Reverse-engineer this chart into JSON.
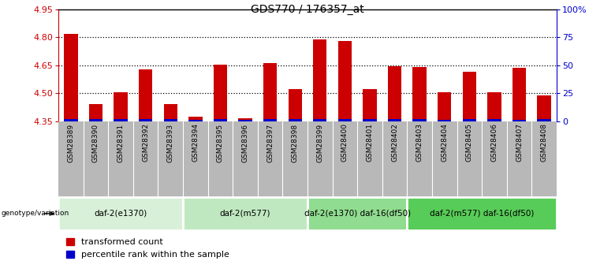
{
  "title": "GDS770 / 176357_at",
  "samples": [
    "GSM28389",
    "GSM28390",
    "GSM28391",
    "GSM28392",
    "GSM28393",
    "GSM28394",
    "GSM28395",
    "GSM28396",
    "GSM28397",
    "GSM28398",
    "GSM28399",
    "GSM28400",
    "GSM28401",
    "GSM28402",
    "GSM28403",
    "GSM28404",
    "GSM28405",
    "GSM28406",
    "GSM28407",
    "GSM28408"
  ],
  "red_values": [
    4.82,
    4.44,
    4.505,
    4.63,
    4.44,
    4.375,
    4.655,
    4.365,
    4.66,
    4.52,
    4.79,
    4.78,
    4.52,
    4.645,
    4.64,
    4.505,
    4.615,
    4.505,
    4.635,
    4.49
  ],
  "blue_heights": [
    0.012,
    0.01,
    0.01,
    0.01,
    0.01,
    0.008,
    0.01,
    0.008,
    0.01,
    0.01,
    0.01,
    0.01,
    0.01,
    0.01,
    0.01,
    0.008,
    0.01,
    0.01,
    0.008,
    0.01
  ],
  "base_value": 4.35,
  "ylim_left": [
    4.35,
    4.95
  ],
  "yticks_left": [
    4.35,
    4.5,
    4.65,
    4.8,
    4.95
  ],
  "ylim_right": [
    0,
    100
  ],
  "yticks_right": [
    0,
    25,
    50,
    75,
    100
  ],
  "ytick_labels_right": [
    "0",
    "25",
    "50",
    "75",
    "100%"
  ],
  "grid_values": [
    4.5,
    4.65,
    4.8
  ],
  "groups": [
    {
      "label": "daf-2(e1370)",
      "start": 0,
      "end": 5,
      "color": "#d8f0d8"
    },
    {
      "label": "daf-2(m577)",
      "start": 5,
      "end": 10,
      "color": "#c0e8c0"
    },
    {
      "label": "daf-2(e1370) daf-16(df50)",
      "start": 10,
      "end": 14,
      "color": "#90dc90"
    },
    {
      "label": "daf-2(m577) daf-16(df50)",
      "start": 14,
      "end": 20,
      "color": "#58cc58"
    }
  ],
  "bar_width": 0.55,
  "red_color": "#cc0000",
  "blue_color": "#0000cc",
  "bg_color": "#ffffff",
  "title_color": "#000000",
  "left_axis_color": "#cc0000",
  "right_axis_color": "#0000cc",
  "legend_red": "transformed count",
  "legend_blue": "percentile rank within the sample",
  "genotype_label": "genotype/variation",
  "sample_bg_color": "#b8b8b8"
}
